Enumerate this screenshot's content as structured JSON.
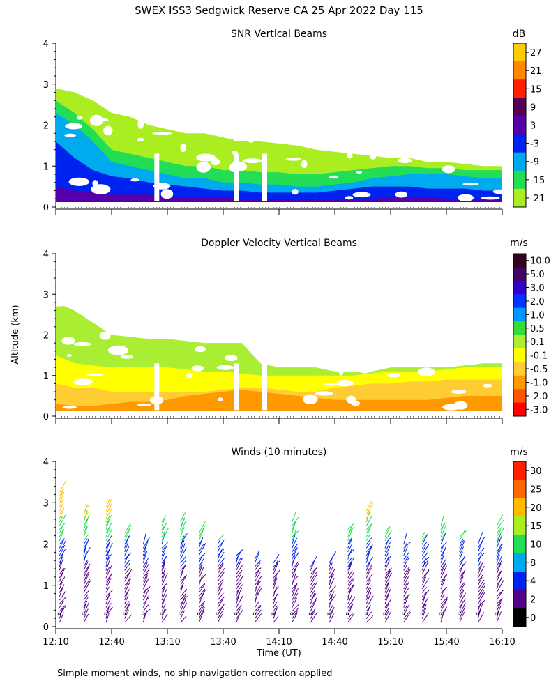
{
  "chart_data": {
    "type": "heatmap",
    "title": "SWEX ISS3 Sedgwick Reserve CA  25 Apr 2022 Day 115",
    "ylabel": "Altitude (km)",
    "xlabel": "Time (UT)",
    "footnote": "Simple moment winds, no ship navigation correction applied",
    "xlim": [
      0,
      240
    ],
    "x_ticks": [
      0,
      30,
      60,
      90,
      120,
      150,
      180,
      210,
      240
    ],
    "x_tick_labels": [
      "12:10",
      "12:40",
      "13:10",
      "13:40",
      "14:10",
      "14:40",
      "15:10",
      "15:40",
      "16:10"
    ],
    "ylim": [
      0,
      4
    ],
    "y_tick_labels": [
      "0",
      "1",
      "2",
      "3",
      "4"
    ],
    "panels": [
      {
        "type": "heatmap",
        "title": "SNR Vertical Beams",
        "unit": "dB",
        "colorbar": {
          "labels": [
            "27",
            "21",
            "15",
            "9",
            "3",
            "-3",
            "-9",
            "-15",
            "-21"
          ],
          "colors": [
            "#ffcc00",
            "#ff8800",
            "#ff2200",
            "#550055",
            "#5500aa",
            "#0022ee",
            "#00aaee",
            "#22dd55",
            "#aaee22"
          ]
        },
        "layers": [
          {
            "color": "#aaee22",
            "top_km": [
              2.9,
              2.8,
              2.6,
              2.3,
              2.2,
              2.0,
              1.9,
              1.8,
              1.8,
              1.7,
              1.6,
              1.6,
              1.55,
              1.5,
              1.4,
              1.35,
              1.3,
              1.25,
              1.2,
              1.2,
              1.1,
              1.1,
              1.05,
              1.0,
              1.0
            ]
          },
          {
            "color": "#22dd55",
            "top_km": [
              2.6,
              2.3,
              1.9,
              1.4,
              1.3,
              1.2,
              1.1,
              1.0,
              1.0,
              0.9,
              0.9,
              0.85,
              0.85,
              0.8,
              0.8,
              0.85,
              0.9,
              0.95,
              1.0,
              1.0,
              0.95,
              0.95,
              0.9,
              0.9,
              0.9
            ]
          },
          {
            "color": "#00aaee",
            "top_km": [
              2.3,
              2.0,
              1.6,
              1.1,
              1.0,
              0.9,
              0.8,
              0.7,
              0.7,
              0.6,
              0.6,
              0.55,
              0.55,
              0.5,
              0.5,
              0.55,
              0.6,
              0.7,
              0.75,
              0.8,
              0.8,
              0.8,
              0.75,
              0.7,
              0.7
            ]
          },
          {
            "color": "#0022ee",
            "top_km": [
              1.6,
              1.2,
              0.9,
              0.75,
              0.7,
              0.6,
              0.55,
              0.5,
              0.45,
              0.4,
              0.4,
              0.35,
              0.35,
              0.35,
              0.35,
              0.4,
              0.45,
              0.5,
              0.5,
              0.5,
              0.45,
              0.45,
              0.45,
              0.4,
              0.4
            ]
          },
          {
            "color": "#5500aa",
            "top_km": [
              0.5,
              0.4,
              0.35,
              0.3,
              0.3,
              0.3,
              0.25,
              0.25,
              0.25,
              0.25,
              0.2,
              0.2,
              0.2,
              0.2,
              0.2,
              0.2,
              0.2,
              0.2,
              0.25,
              0.25,
              0.25,
              0.2,
              0.2,
              0.2,
              0.2
            ]
          }
        ]
      },
      {
        "type": "heatmap",
        "title": "Doppler Velocity Vertical Beams",
        "unit": "m/s",
        "colorbar": {
          "labels": [
            "10.0",
            "5.0",
            "3.0",
            "2.0",
            "1.0",
            "0.5",
            "0.1",
            "-0.1",
            "-0.5",
            "-1.0",
            "-2.0",
            "-3.0"
          ],
          "colors": [
            "#330022",
            "#440066",
            "#3300cc",
            "#0033ff",
            "#0099ff",
            "#33dd33",
            "#aaee33",
            "#ffff00",
            "#ffcc33",
            "#ff9900",
            "#ff5500",
            "#ff0000"
          ]
        },
        "layers": [
          {
            "color": "#aaee33",
            "top_km": [
              2.8,
              2.6,
              2.3,
              2.0,
              1.95,
              1.9,
              1.9,
              1.85,
              1.8,
              1.8,
              1.8,
              1.3,
              1.2,
              1.2,
              1.2,
              1.1,
              1.1,
              1.1,
              1.2,
              1.2,
              1.2,
              1.2,
              1.25,
              1.3,
              1.3
            ]
          },
          {
            "color": "#ffff00",
            "top_km": [
              1.5,
              1.3,
              1.25,
              1.2,
              1.2,
              1.2,
              1.2,
              1.15,
              1.1,
              1.1,
              1.05,
              1.0,
              1.0,
              1.0,
              1.0,
              1.0,
              1.0,
              1.05,
              1.1,
              1.1,
              1.1,
              1.15,
              1.2,
              1.2,
              1.2
            ]
          },
          {
            "color": "#ffcc33",
            "top_km": [
              0.8,
              0.7,
              0.7,
              0.6,
              0.6,
              0.6,
              0.6,
              0.6,
              0.6,
              0.65,
              0.7,
              0.7,
              0.65,
              0.6,
              0.6,
              0.7,
              0.75,
              0.8,
              0.8,
              0.85,
              0.85,
              0.9,
              0.9,
              0.9,
              0.9
            ]
          },
          {
            "color": "#ff9900",
            "top_km": [
              0.3,
              0.25,
              0.25,
              0.3,
              0.35,
              0.35,
              0.4,
              0.5,
              0.55,
              0.6,
              0.65,
              0.6,
              0.55,
              0.5,
              0.45,
              0.4,
              0.4,
              0.4,
              0.4,
              0.4,
              0.4,
              0.45,
              0.5,
              0.5,
              0.5
            ]
          }
        ]
      },
      {
        "type": "wind_barbs",
        "title": "Winds (10 minutes)",
        "unit": "m/s",
        "colorbar": {
          "labels": [
            "30",
            "25",
            "20",
            "15",
            "10",
            "8",
            "4",
            "2",
            "0"
          ],
          "colors": [
            "#ff2200",
            "#ff6600",
            "#ffbb00",
            "#aaee22",
            "#22dd55",
            "#00aaee",
            "#0022ee",
            "#550088",
            "#000000"
          ]
        },
        "profile_times_min": [
          2,
          15,
          27,
          37,
          47,
          57,
          67,
          77,
          87,
          97,
          107,
          117,
          127,
          137,
          147,
          157,
          167,
          177,
          187,
          197,
          207,
          217,
          227,
          237
        ],
        "profile_top_km": [
          3.3,
          2.8,
          2.9,
          2.3,
          2.0,
          2.6,
          2.6,
          2.3,
          2.1,
          1.8,
          1.7,
          1.6,
          2.6,
          1.5,
          1.6,
          2.4,
          2.8,
          2.3,
          2.0,
          2.2,
          2.5,
          2.2,
          2.0,
          2.5
        ],
        "speed_color_by_height": [
          {
            "below_km": 1.4,
            "color": "#550088"
          },
          {
            "below_km": 2.0,
            "color": "#0022ee"
          },
          {
            "below_km": 2.6,
            "color": "#22dd55"
          },
          {
            "below_km": 4.0,
            "color": "#ffbb00"
          }
        ]
      }
    ]
  }
}
